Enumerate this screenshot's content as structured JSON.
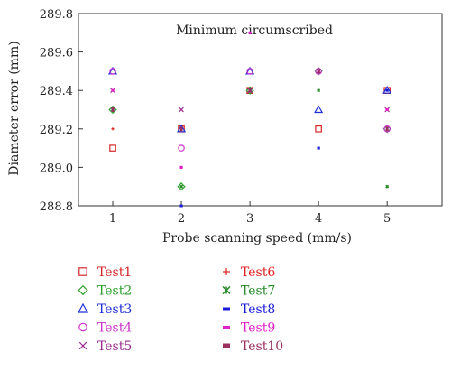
{
  "chart_data": {
    "type": "scatter",
    "title": "Minimum circumscribed",
    "xlabel": "Probe scanning speed (mm/s)",
    "ylabel": "Diameter error (mm)",
    "xlim": [
      0.5,
      5.8
    ],
    "ylim": [
      288.8,
      289.8
    ],
    "x_ticks": [
      "1",
      "2",
      "3",
      "4",
      "5"
    ],
    "y_ticks": [
      "288.8",
      "289.0",
      "289.2",
      "289.4",
      "289.6",
      "289.8"
    ],
    "grid": false,
    "legend_position": "bottom",
    "series": [
      {
        "name": "Test1",
        "marker": "square-open",
        "color": "#d62728",
        "x": [
          1,
          2,
          3,
          4,
          5
        ],
        "y": [
          289.1,
          289.2,
          289.4,
          289.2,
          289.4
        ]
      },
      {
        "name": "Test2",
        "marker": "diamond-open",
        "color": "#2ca02c",
        "x": [
          1,
          2,
          3,
          4,
          5
        ],
        "y": [
          289.3,
          288.9,
          289.4,
          289.5,
          289.2
        ]
      },
      {
        "name": "Test3",
        "marker": "triangle-open",
        "color": "#1f2fd6",
        "x": [
          1,
          2,
          3,
          4,
          5
        ],
        "y": [
          289.5,
          289.2,
          289.5,
          289.3,
          289.4
        ]
      },
      {
        "name": "Test4",
        "marker": "circle-open",
        "color": "#cc33cc",
        "x": [
          1,
          2,
          3,
          4,
          5
        ],
        "y": [
          289.5,
          289.1,
          289.5,
          289.5,
          289.2
        ]
      },
      {
        "name": "Test5",
        "marker": "x",
        "color": "#9a2d8f",
        "x": [
          1,
          2,
          3,
          4,
          5
        ],
        "y": [
          289.4,
          289.3,
          289.4,
          289.5,
          289.3
        ]
      },
      {
        "name": "Test6",
        "marker": "plus",
        "color": "#e02020",
        "x": [
          1,
          2,
          3,
          4,
          5
        ],
        "y": [
          289.2,
          289.0,
          289.4,
          289.5,
          289.3
        ]
      },
      {
        "name": "Test7",
        "marker": "star",
        "color": "#2a8a2a",
        "x": [
          1,
          2,
          3,
          4,
          5
        ],
        "y": [
          289.3,
          288.9,
          289.4,
          289.4,
          288.9
        ]
      },
      {
        "name": "Test8",
        "marker": "dash",
        "color": "#1a1ad9",
        "x": [
          1,
          2,
          3,
          4,
          5
        ],
        "y": [
          289.3,
          288.8,
          289.4,
          289.1,
          289.4
        ]
      },
      {
        "name": "Test9",
        "marker": "dash",
        "color": "#e020c8",
        "x": [
          1,
          2,
          3,
          4,
          5
        ],
        "y": [
          289.4,
          289.0,
          289.7,
          289.5,
          289.3
        ]
      },
      {
        "name": "Test10",
        "marker": "dash-thick",
        "color": "#9a3060",
        "x": [
          1,
          2,
          3,
          4,
          5
        ],
        "y": [
          289.3,
          289.2,
          289.4,
          289.5,
          289.2
        ]
      }
    ]
  }
}
